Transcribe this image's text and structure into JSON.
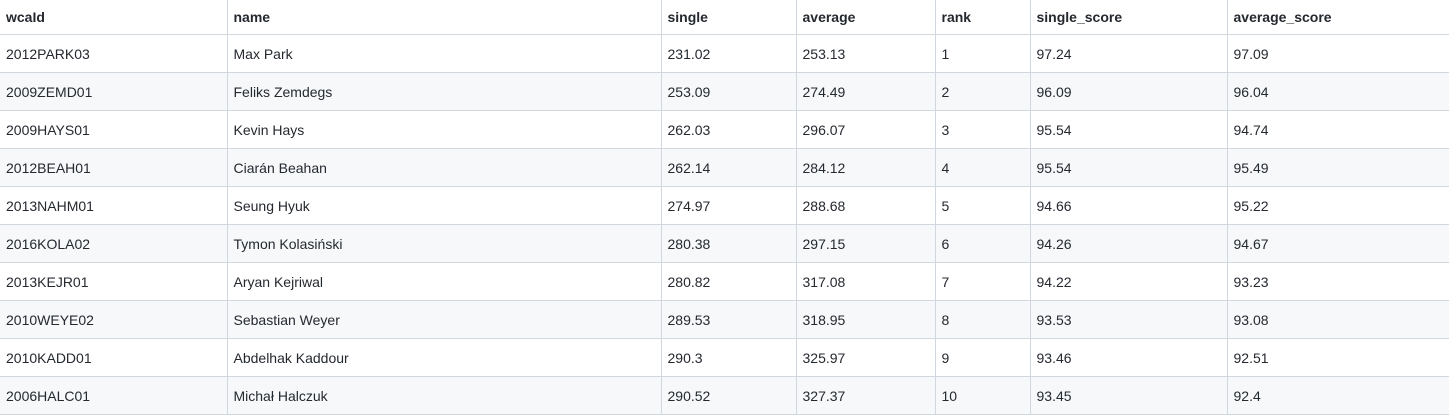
{
  "table": {
    "headers": [
      "wcaId",
      "name",
      "single",
      "average",
      "rank",
      "single_score",
      "average_score"
    ],
    "rows": [
      [
        "2012PARK03",
        "Max Park",
        "231.02",
        "253.13",
        "1",
        "97.24",
        "97.09"
      ],
      [
        "2009ZEMD01",
        "Feliks Zemdegs",
        "253.09",
        "274.49",
        "2",
        "96.09",
        "96.04"
      ],
      [
        "2009HAYS01",
        "Kevin Hays",
        "262.03",
        "296.07",
        "3",
        "95.54",
        "94.74"
      ],
      [
        "2012BEAH01",
        "Ciarán Beahan",
        "262.14",
        "284.12",
        "4",
        "95.54",
        "95.49"
      ],
      [
        "2013NAHM01",
        "Seung Hyuk",
        "274.97",
        "288.68",
        "5",
        "94.66",
        "95.22"
      ],
      [
        "2016KOLA02",
        "Tymon Kolasiński",
        "280.38",
        "297.15",
        "6",
        "94.26",
        "94.67"
      ],
      [
        "2013KEJR01",
        "Aryan Kejriwal",
        "280.82",
        "317.08",
        "7",
        "94.22",
        "93.23"
      ],
      [
        "2010WEYE02",
        "Sebastian Weyer",
        "289.53",
        "318.95",
        "8",
        "93.53",
        "93.08"
      ],
      [
        "2010KADD01",
        "Abdelhak Kaddour",
        "290.3",
        "325.97",
        "9",
        "93.46",
        "92.51"
      ],
      [
        "2006HALC01",
        "Michał Halczuk",
        "290.52",
        "327.37",
        "10",
        "93.45",
        "92.4"
      ]
    ]
  }
}
